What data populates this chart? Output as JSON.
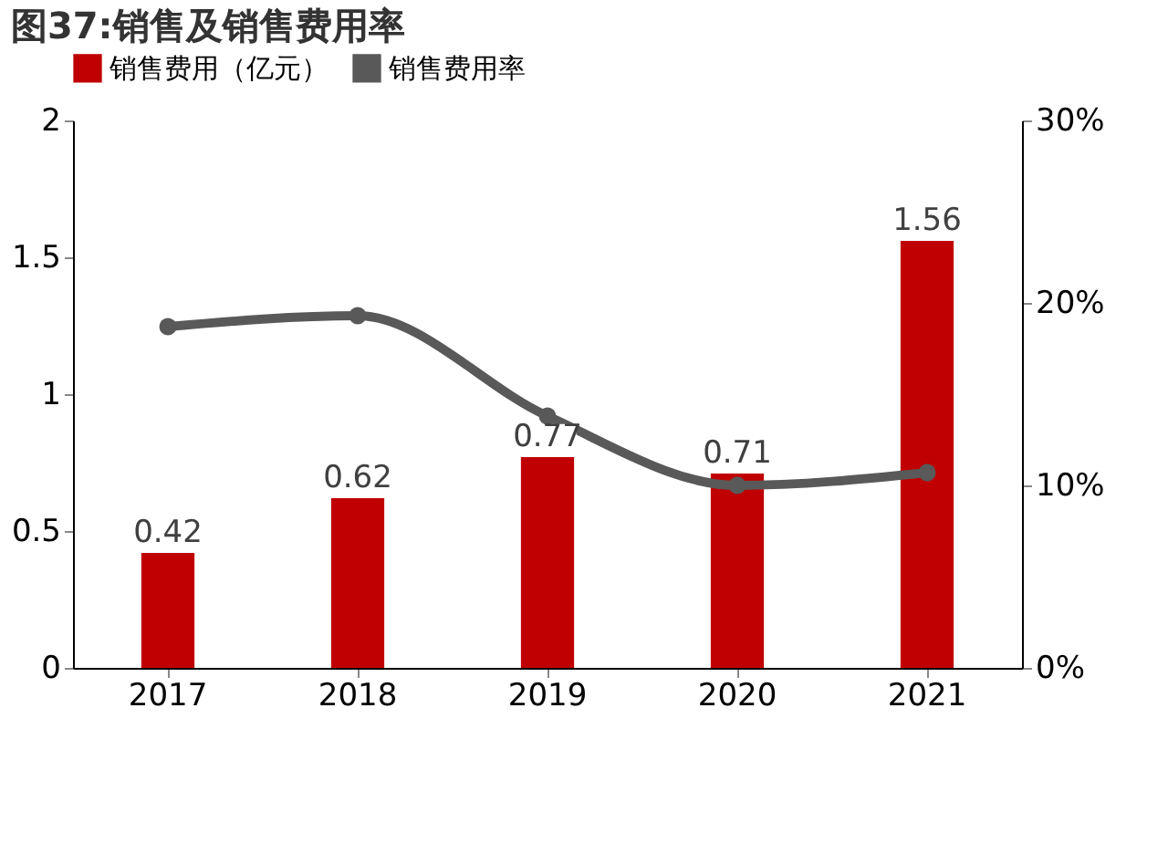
{
  "chart_data": {
    "type": "bar",
    "title": "图37:销售及销售费用率",
    "categories": [
      "2017",
      "2018",
      "2019",
      "2020",
      "2021"
    ],
    "series": [
      {
        "name": "销售费用（亿元）",
        "color": "#c00000",
        "values": [
          0.42,
          0.62,
          0.77,
          0.71,
          1.56
        ],
        "value_labels": [
          "0.42",
          "0.62",
          "0.77",
          "0.71",
          "1.56"
        ]
      },
      {
        "name": "销售费用率",
        "type": "line",
        "axis": "y2",
        "color": "#595959",
        "marker": "circle",
        "values": [
          18.7,
          19.3,
          13.8,
          10.0,
          10.7
        ]
      }
    ],
    "ylim": [
      0,
      2
    ],
    "yticks": [
      0,
      0.5,
      1,
      1.5,
      2
    ],
    "y2lim": [
      0,
      30
    ],
    "y2ticks": [
      {
        "value": 0,
        "label": "0%"
      },
      {
        "value": 10,
        "label": "10%"
      },
      {
        "value": 20,
        "label": "20%"
      },
      {
        "value": 30,
        "label": "30%"
      }
    ],
    "grid": false,
    "legend": "top"
  }
}
